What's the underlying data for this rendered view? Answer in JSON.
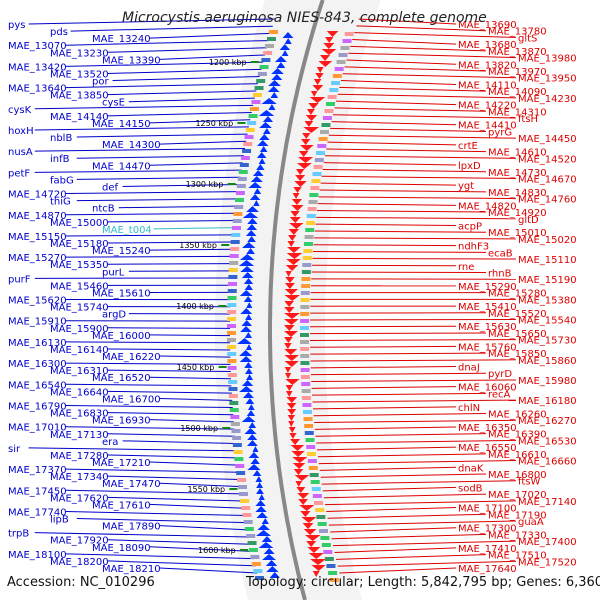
{
  "title": "Microcystis aeruginosa NIES-843, complete genome",
  "accession_text": "Accession: NC_010296",
  "summary_text": "Topology: circular; Length: 5,842,795 bp; Genes: 6,360",
  "colors": {
    "left_labels": "#0000cc",
    "right_labels": "#dd0000",
    "rna_label": "#33bbcc",
    "forward_strand": "#0033ff",
    "reverse_strand": "#ff1a1a",
    "backbone": "#888888",
    "tick": "#118811"
  },
  "ticks": [
    "1200 kbp",
    "1250 kbp",
    "1300 kbp",
    "1350 kbp",
    "1400 kbp",
    "1450 kbp",
    "1500 kbp",
    "1550 kbp",
    "1600 kbp"
  ],
  "left_genes": [
    "pys",
    "pds",
    "MAE_13240",
    "MAE_13070",
    "MAE_13230",
    "MAE_13390",
    "MAE_13420",
    "MAE_13520",
    "por",
    "MAE_13640",
    "MAE_13850",
    "cysE",
    "cysK",
    "MAE_14140",
    "MAE_14150",
    "hoxH",
    "nblB",
    "MAE_14300",
    "nusA",
    "infB",
    "MAE_14470",
    "petF",
    "fabG",
    "def",
    "MAE_14720",
    "thiG",
    "ntcB",
    "MAE_14870",
    "MAE_15000",
    "MAE_t004",
    "MAE_15150",
    "MAE_15180",
    "MAE_15240",
    "MAE_15270",
    "MAE_15350",
    "purL",
    "purF",
    "MAE_15460",
    "MAE_15610",
    "MAE_15620",
    "MAE_15740",
    "argD",
    "MAE_15910",
    "MAE_15900",
    "MAE_16000",
    "MAE_16130",
    "MAE_16140",
    "MAE_16220",
    "MAE_16300",
    "MAE_16310",
    "MAE_16520",
    "MAE_16540",
    "MAE_16640",
    "MAE_16700",
    "MAE_16790",
    "MAE_16830",
    "MAE_16930",
    "MAE_17010",
    "MAE_17130",
    "era",
    "sir",
    "MAE_17280",
    "MAE_17210",
    "MAE_17370",
    "MAE_17340",
    "MAE_17470",
    "MAE_17450",
    "MAE_17620",
    "MAE_17610",
    "MAE_17740",
    "lipB",
    "MAE_17890",
    "trpB",
    "MAE_17920",
    "MAE_18090",
    "MAE_18100",
    "MAE_18200",
    "MAE_18210"
  ],
  "right_genes": [
    "MAE_13690",
    "MAE_13780",
    "gltS",
    "MAE_13680",
    "MAE_13870",
    "MAE_13980",
    "MAE_13820",
    "MAE_13970",
    "MAE_13950",
    "MAE_14110",
    "MAE_14090",
    "MAE_14230",
    "MAE_14220",
    "MAE_14310",
    "ftsH",
    "MAE_14410",
    "pyrG",
    "MAE_14450",
    "crtE",
    "MAE_14610",
    "MAE_14520",
    "lpxD",
    "MAE_14730",
    "MAE_14670",
    "ygt",
    "MAE_14830",
    "MAE_14760",
    "MAE_14820",
    "MAE_14920",
    "gltD",
    "acpP",
    "MAE_15010",
    "MAE_15020",
    "ndhF3",
    "ecaB",
    "MAE_15110",
    "rne",
    "rhnB",
    "MAE_15190",
    "MAE_15290",
    "MAE_15280",
    "MAE_15380",
    "MAE_15410",
    "MAE_15520",
    "MAE_15540",
    "MAE_15630",
    "MAE_15650",
    "MAE_15730",
    "MAE_15760",
    "MAE_15850",
    "MAE_15860",
    "dnaJ",
    "pyrD",
    "MAE_15980",
    "MAE_16060",
    "recA",
    "MAE_16180",
    "chlN",
    "MAE_16260",
    "MAE_16270",
    "MAE_16350",
    "MAE_16390",
    "MAE_16530",
    "MAE_16550",
    "MAE_16610",
    "MAE_16660",
    "dnaK",
    "MAE_16800",
    "ftsW",
    "sodB",
    "MAE_17020",
    "MAE_17140",
    "MAE_17100",
    "MAE_17190",
    "guaA",
    "MAE_17300",
    "MAE_17330",
    "MAE_17400",
    "MAE_17410",
    "MAE_17510",
    "MAE_17520",
    "MAE_17640"
  ]
}
